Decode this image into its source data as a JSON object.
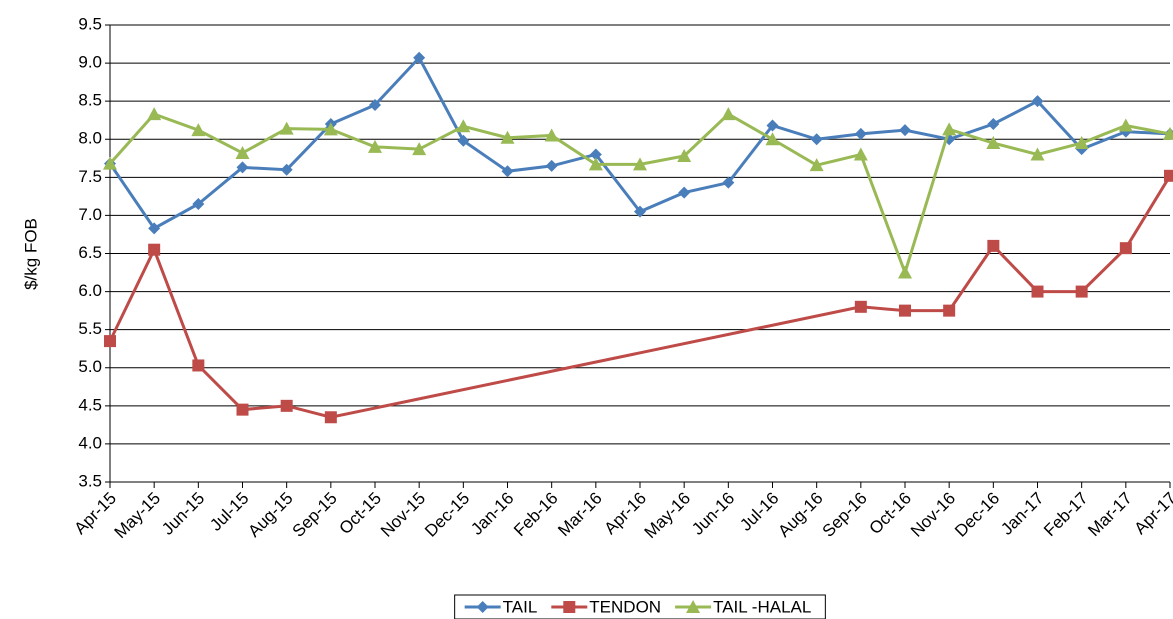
{
  "chart_data": {
    "type": "line",
    "y_label": "$/kg FOB",
    "categories": [
      "Apr-15",
      "May-15",
      "Jun-15",
      "Jul-15",
      "Aug-15",
      "Sep-15",
      "Oct-15",
      "Nov-15",
      "Dec-15",
      "Jan-16",
      "Feb-16",
      "Mar-16",
      "Apr-16",
      "May-16",
      "Jun-16",
      "Jul-16",
      "Aug-16",
      "Sep-16",
      "Oct-16",
      "Nov-16",
      "Dec-16",
      "Jan-17",
      "Feb-17",
      "Mar-17",
      "Apr-17"
    ],
    "series": [
      {
        "name": "TAIL",
        "color": "#4a7ebb",
        "marker": "diamond",
        "values": [
          7.68,
          6.83,
          7.15,
          7.63,
          7.6,
          8.2,
          8.45,
          9.07,
          7.98,
          7.58,
          7.65,
          7.8,
          7.05,
          7.3,
          7.43,
          8.18,
          8.0,
          8.07,
          8.12,
          8.0,
          8.2,
          8.5,
          7.87,
          8.1,
          8.07
        ]
      },
      {
        "name": "TENDON",
        "color": "#be4b48",
        "marker": "square",
        "values": [
          5.35,
          6.55,
          5.03,
          4.45,
          4.5,
          4.35,
          null,
          null,
          null,
          null,
          null,
          null,
          null,
          null,
          null,
          null,
          null,
          5.8,
          5.75,
          5.75,
          6.6,
          6.0,
          6.0,
          6.57,
          7.52
        ]
      },
      {
        "name": "TAIL -HALAL",
        "color": "#98b954",
        "marker": "triangle",
        "values": [
          7.68,
          8.33,
          8.12,
          7.82,
          8.14,
          8.13,
          7.9,
          7.87,
          8.17,
          8.02,
          8.05,
          7.67,
          7.67,
          7.78,
          8.33,
          8.0,
          7.66,
          7.8,
          6.25,
          8.13,
          7.95,
          7.8,
          7.95,
          8.18,
          8.07
        ]
      }
    ],
    "connect_gaps": true,
    "ylim": [
      3.5,
      9.5
    ],
    "yticks": [
      3.5,
      {
        "value": 4,
        "label": "4.0"
      },
      4.5,
      {
        "value": 5,
        "label": "5.0"
      },
      5.5,
      {
        "value": 6,
        "label": "6.0"
      },
      6.5,
      {
        "value": 7,
        "label": "7.0"
      },
      7.5,
      {
        "value": 8,
        "label": "8.0"
      },
      8.5,
      {
        "value": 9,
        "label": "9.0"
      },
      9.5
    ],
    "grid": true,
    "legend": "bottom"
  }
}
